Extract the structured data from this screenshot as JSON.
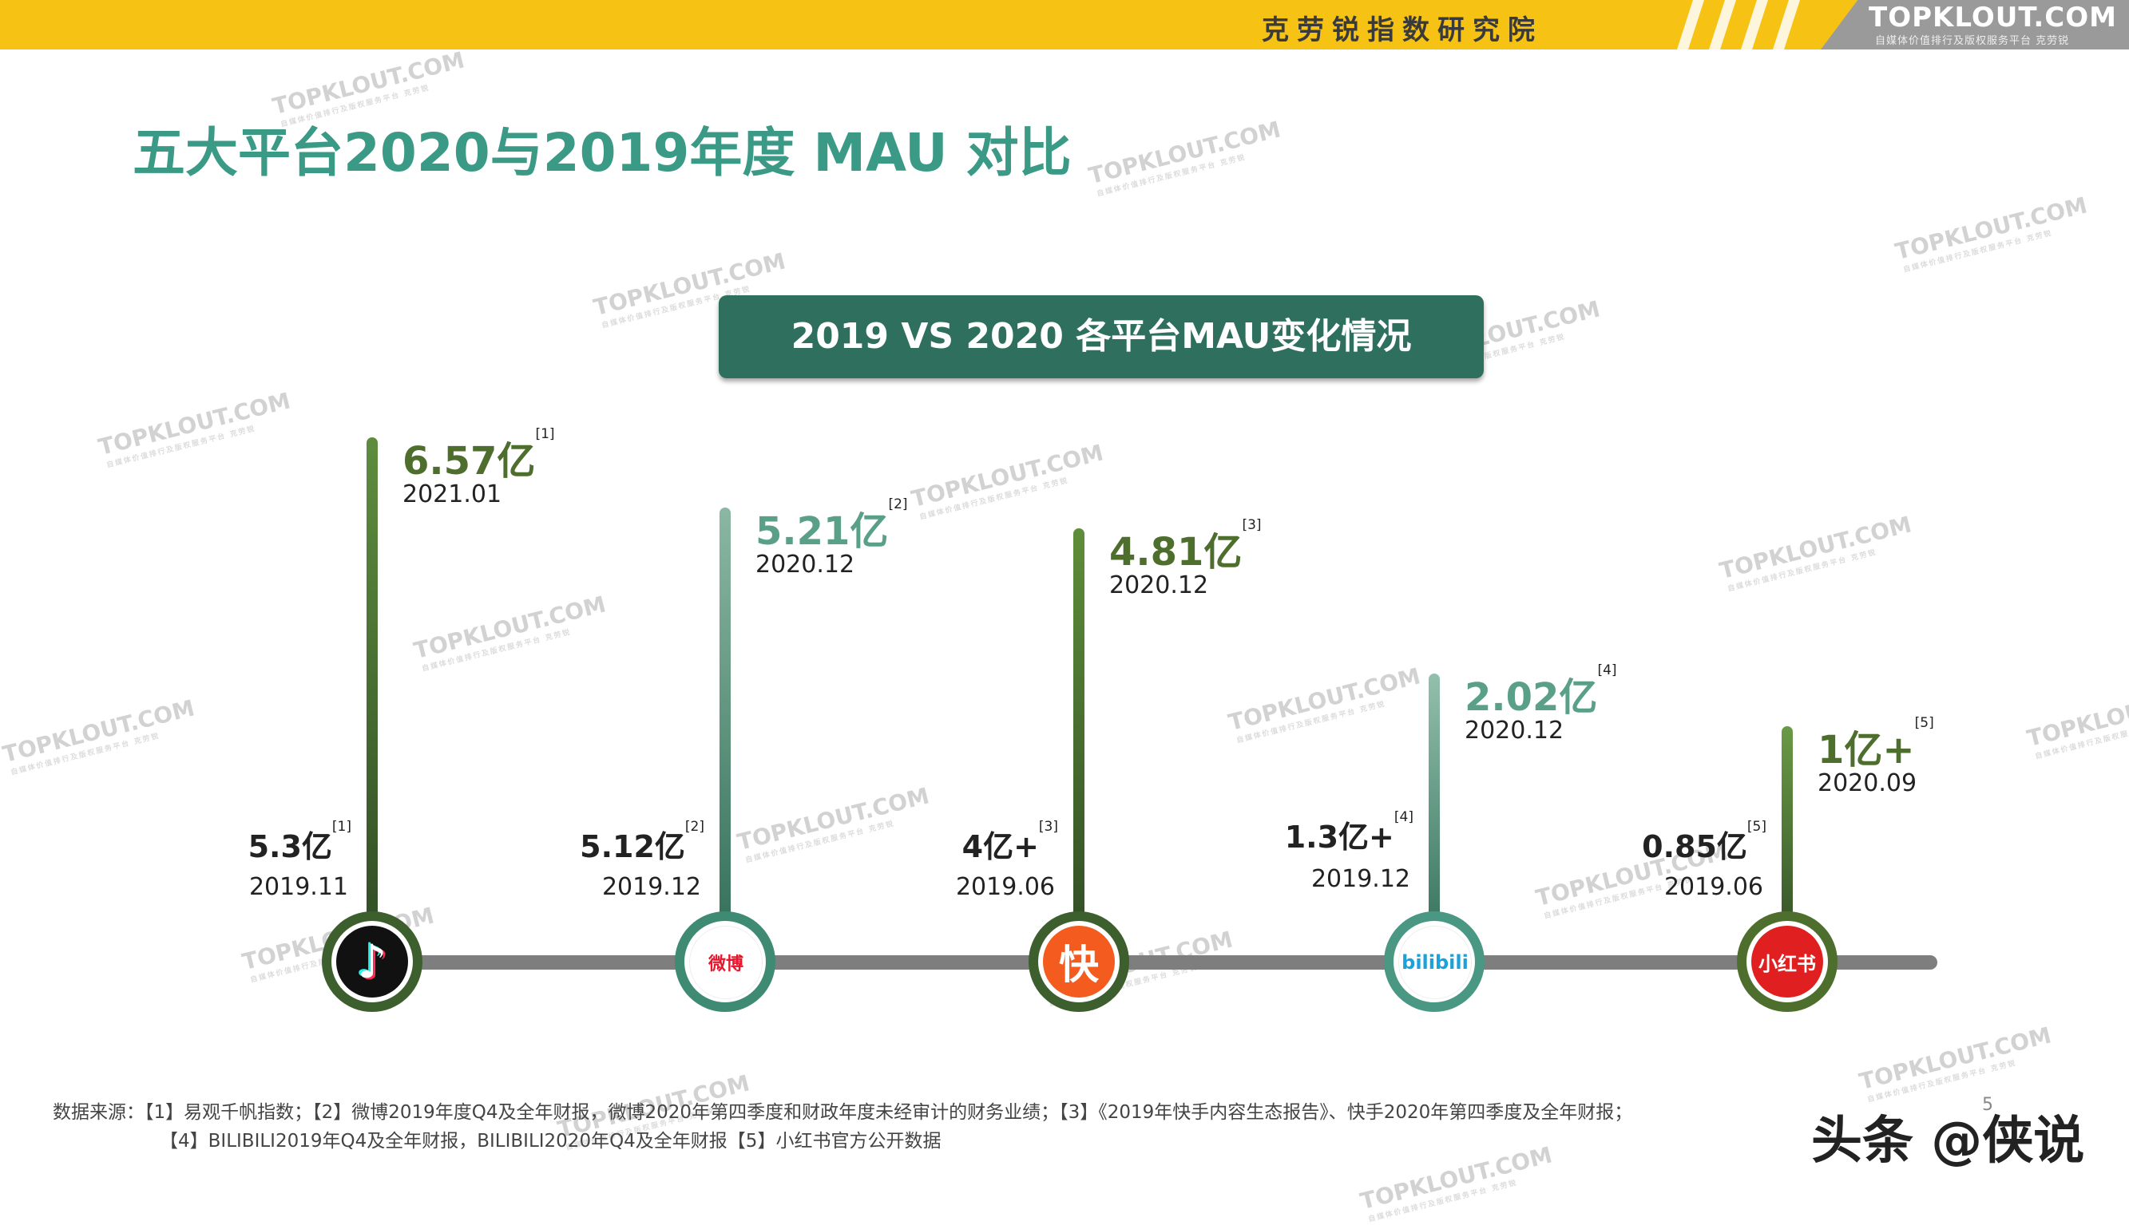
{
  "header": {
    "org_name": "克劳锐指数研究院",
    "logo_text": "TOPKLOUT.COM",
    "logo_sub": "自媒体价值排行及版权服务平台 克劳锐"
  },
  "title": "五大平台2020与2019年度 MAU 对比",
  "banner": "2019 VS 2020 各平台MAU变化情况",
  "watermark": {
    "text": "TOPKLOUT.COM",
    "sub": "自媒体价值排行及版权服务平台 克劳锐"
  },
  "colors": {
    "accent_green": "#3a9a86",
    "banner_bg": "#2e6f5e",
    "top_bar": "#f6c315",
    "olive": "#4e6e2e"
  },
  "chart_data": {
    "type": "timeline-comparison",
    "unit": "亿",
    "platforms": [
      {
        "icon": "douyin-icon",
        "logo_text": "♪",
        "color": "#111111",
        "v2019": {
          "label": "5.3亿",
          "ref": "[1]",
          "date": "2019.11",
          "value": 5.3
        },
        "v2020": {
          "label": "6.57亿",
          "ref": "[1]",
          "date": "2021.01",
          "value": 6.57
        }
      },
      {
        "icon": "weibo-icon",
        "logo_text": "微博",
        "color": "#ffffff",
        "v2019": {
          "label": "5.12亿",
          "ref": "[2]",
          "date": "2019.12",
          "value": 5.12
        },
        "v2020": {
          "label": "5.21亿",
          "ref": "[2]",
          "date": "2020.12",
          "value": 5.21
        }
      },
      {
        "icon": "kuaishou-icon",
        "logo_text": "快",
        "color": "#f45b1e",
        "v2019": {
          "label": "4亿+",
          "ref": "[3]",
          "date": "2019.06",
          "value": 4
        },
        "v2020": {
          "label": "4.81亿",
          "ref": "[3]",
          "date": "2020.12",
          "value": 4.81
        }
      },
      {
        "icon": "bilibili-icon",
        "logo_text": "bilibili",
        "color": "#ffffff",
        "v2019": {
          "label": "1.3亿+",
          "ref": "[4]",
          "date": "2019.12",
          "value": 1.3
        },
        "v2020": {
          "label": "2.02亿",
          "ref": "[4]",
          "date": "2020.12",
          "value": 2.02
        }
      },
      {
        "icon": "xiaohongshu-icon",
        "logo_text": "小红书",
        "color": "#e02020",
        "v2019": {
          "label": "0.85亿",
          "ref": "[5]",
          "date": "2019.06",
          "value": 0.85
        },
        "v2020": {
          "label": "1亿+",
          "ref": "[5]",
          "date": "2020.09",
          "value": 1
        }
      }
    ]
  },
  "sources": {
    "line1": "数据来源：【1】易观千帆指数；【2】微博2019年度Q4及全年财报，微博2020年第四季度和财政年度未经审计的财务业绩；【3】《2019年快手内容生态报告》、快手2020年第四季度及全年财报；",
    "line2": "【4】BILIBILI2019年Q4及全年财报，BILIBILI2020年Q4及全年财报【5】小红书官方公开数据"
  },
  "signature": "头条 @侠说",
  "page_number": "5"
}
